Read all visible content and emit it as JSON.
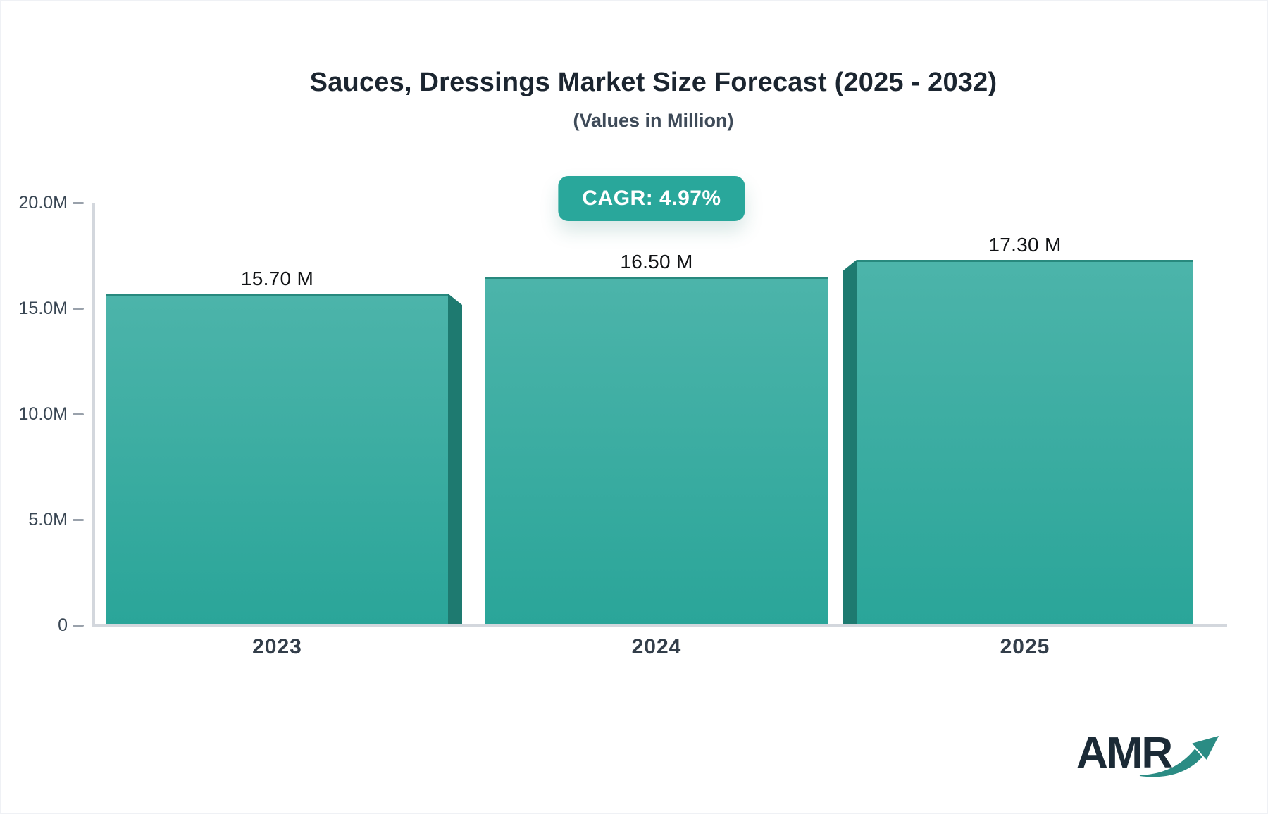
{
  "header": {
    "title": "Sauces, Dressings Market Size Forecast (2025 - 2032)",
    "subtitle": "(Values in Million)"
  },
  "badge": {
    "label": "CAGR: 4.97%",
    "background": "#29a79b",
    "text_color": "#ffffff"
  },
  "chart_data": {
    "type": "bar",
    "title": "Sauces, Dressings Market Size Forecast (2025 - 2032)",
    "subtitle": "(Values in Million)",
    "categories": [
      "2023",
      "2024",
      "2025"
    ],
    "values": [
      15.7,
      16.5,
      17.3
    ],
    "value_labels": [
      "15.70 M",
      "16.50 M",
      "17.30 M"
    ],
    "unit": "Million",
    "cagr": "4.97%",
    "xlabel": "",
    "ylabel": "",
    "ylim": [
      0,
      20
    ],
    "grid": false,
    "legend": false,
    "yticks": [
      {
        "value": 0,
        "label": "0"
      },
      {
        "value": 5,
        "label": "5.0M"
      },
      {
        "value": 10,
        "label": "10.0M"
      },
      {
        "value": 15,
        "label": "15.0M"
      },
      {
        "value": 20,
        "label": "20.0M"
      }
    ],
    "bar_colors": {
      "top": "#4cb4aa",
      "bottom": "#2aa599",
      "top_edge": "#28897e",
      "side_shadow": "#1e7a70"
    },
    "axis_color": "#d3d7dd",
    "tick_color": "#99a1ab"
  },
  "logo": {
    "text": "AMR",
    "text_color": "#1b2a36",
    "arrow_color": "#2b8c84"
  }
}
